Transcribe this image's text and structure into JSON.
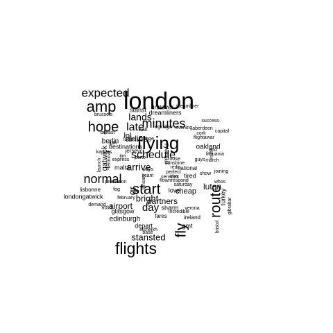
{
  "cloud": {
    "word_color": "#000000",
    "background_color": "#ffffff",
    "words": [
      {
        "text": "london"
      },
      {
        "text": "flights"
      },
      {
        "text": "flying"
      },
      {
        "text": "amp"
      },
      {
        "text": "expected"
      },
      {
        "text": "hope"
      },
      {
        "text": "normal"
      },
      {
        "text": "start"
      },
      {
        "text": "route"
      },
      {
        "text": "fly"
      },
      {
        "text": "minutes"
      },
      {
        "text": "late"
      },
      {
        "text": "schedule"
      },
      {
        "text": "lands"
      },
      {
        "text": "arrive"
      },
      {
        "text": "day"
      },
      {
        "text": "bright"
      },
      {
        "text": "airport"
      },
      {
        "text": "gr"
      },
      {
        "text": "partners"
      },
      {
        "text": "airline"
      },
      {
        "text": "stansted"
      },
      {
        "text": "luton"
      },
      {
        "text": "oakland"
      },
      {
        "text": "lol"
      },
      {
        "text": "berlin"
      },
      {
        "text": "gatwick"
      },
      {
        "text": "cheap"
      },
      {
        "text": "dreamliners"
      },
      {
        "text": "firstever"
      },
      {
        "text": "stanst"
      },
      {
        "text": "destinations"
      },
      {
        "text": "edinburgh"
      },
      {
        "text": "glasgow"
      },
      {
        "text": "visit"
      },
      {
        "text": "sharm"
      },
      {
        "text": "depart"
      },
      {
        "text": "gmt"
      },
      {
        "text": "londongatwick"
      },
      {
        "text": "lisbonne"
      },
      {
        "text": "malta"
      },
      {
        "text": "love"
      },
      {
        "text": "tired"
      },
      {
        "text": "turkey"
      },
      {
        "text": "ireland"
      },
      {
        "text": "fares"
      },
      {
        "text": "base"
      },
      {
        "text": "national"
      },
      {
        "text": "whos"
      },
      {
        "text": "gibraltar"
      },
      {
        "text": "bristol"
      },
      {
        "text": "verona"
      },
      {
        "text": "incredible"
      },
      {
        "text": "elsheikh"
      },
      {
        "text": "flownrespond"
      },
      {
        "text": "saturday"
      },
      {
        "text": "clos"
      },
      {
        "text": "services"
      },
      {
        "text": "perfect"
      },
      {
        "text": "redis"
      },
      {
        "text": "sunshine"
      },
      {
        "text": "nose"
      },
      {
        "text": "scam"
      },
      {
        "text": "ways"
      },
      {
        "text": "january"
      },
      {
        "text": "february"
      },
      {
        "text": "fog"
      },
      {
        "text": "demand"
      },
      {
        "text": "promotion"
      },
      {
        "text": "terminal"
      },
      {
        "text": "launch"
      },
      {
        "text": "kaunas"
      },
      {
        "text": "express"
      },
      {
        "text": "tim"
      },
      {
        "text": "jerseyci"
      },
      {
        "text": "porto"
      },
      {
        "text": "jpm"
      },
      {
        "text": "ladies"
      },
      {
        "text": "range"
      },
      {
        "text": "belfast"
      },
      {
        "text": "wait"
      },
      {
        "text": "egkklgw"
      },
      {
        "text": "evening"
      },
      {
        "text": "aberdeen"
      },
      {
        "text": "cork"
      },
      {
        "text": "capital"
      },
      {
        "text": "flightawar"
      },
      {
        "text": "italian"
      },
      {
        "text": "end"
      },
      {
        "text": "lithuania"
      },
      {
        "text": "march"
      },
      {
        "text": "guys"
      },
      {
        "text": "joining"
      },
      {
        "text": "show"
      },
      {
        "text": "success"
      },
      {
        "text": "dreamliner"
      },
      {
        "text": "brussels"
      },
      {
        "text": "ryanair"
      }
    ]
  }
}
